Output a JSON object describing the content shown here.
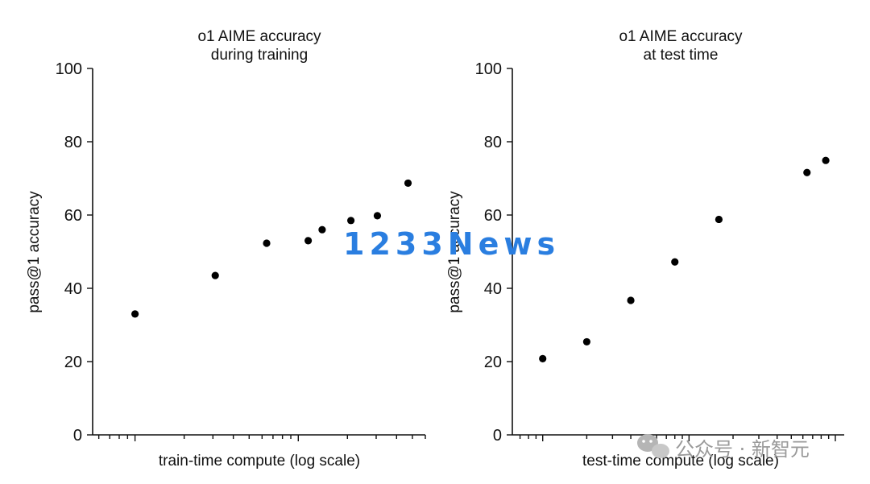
{
  "chart_data": [
    {
      "type": "scatter",
      "title": [
        "o1 AIME accuracy",
        "during training"
      ],
      "xlabel": "train-time compute (log scale)",
      "ylabel": "pass@1 accuracy",
      "xscale": "log",
      "ylim": [
        0,
        100
      ],
      "yticks": [
        0,
        20,
        40,
        60,
        80,
        100
      ],
      "ytick_labels": [
        "0",
        "20",
        "40",
        "60",
        "80",
        "100"
      ],
      "x_tick_labels_shown": false,
      "grid": false,
      "series": [
        {
          "points": [
            {
              "x": 1.0,
              "y": 33
            },
            {
              "x": 3.1,
              "y": 43.5
            },
            {
              "x": 6.4,
              "y": 52.3
            },
            {
              "x": 11.5,
              "y": 53
            },
            {
              "x": 14.0,
              "y": 56
            },
            {
              "x": 21.0,
              "y": 58.5
            },
            {
              "x": 30.5,
              "y": 59.8
            },
            {
              "x": 47.0,
              "y": 68.7
            }
          ]
        }
      ]
    },
    {
      "type": "scatter",
      "title": [
        "o1 AIME accuracy",
        "at test time"
      ],
      "xlabel": "test-time compute (log scale)",
      "ylabel": "pass@1 accuracy",
      "xscale": "log",
      "ylim": [
        0,
        100
      ],
      "yticks": [
        0,
        20,
        40,
        60,
        80,
        100
      ],
      "ytick_labels": [
        "0",
        "20",
        "40",
        "60",
        "80",
        "100"
      ],
      "x_tick_labels_shown": false,
      "grid": false,
      "series": [
        {
          "points": [
            {
              "x": 1.0,
              "y": 20.8
            },
            {
              "x": 2.0,
              "y": 25.4
            },
            {
              "x": 4.0,
              "y": 36.7
            },
            {
              "x": 8.0,
              "y": 47.2
            },
            {
              "x": 16.0,
              "y": 58.8
            },
            {
              "x": 64.0,
              "y": 71.6
            },
            {
              "x": 86.0,
              "y": 74.9
            }
          ]
        }
      ]
    }
  ],
  "watermark": {
    "text": "1233News",
    "color": "#2a7ee0"
  },
  "credit": {
    "text": "公众号 · 新智元",
    "icon": "wechat-icon"
  }
}
